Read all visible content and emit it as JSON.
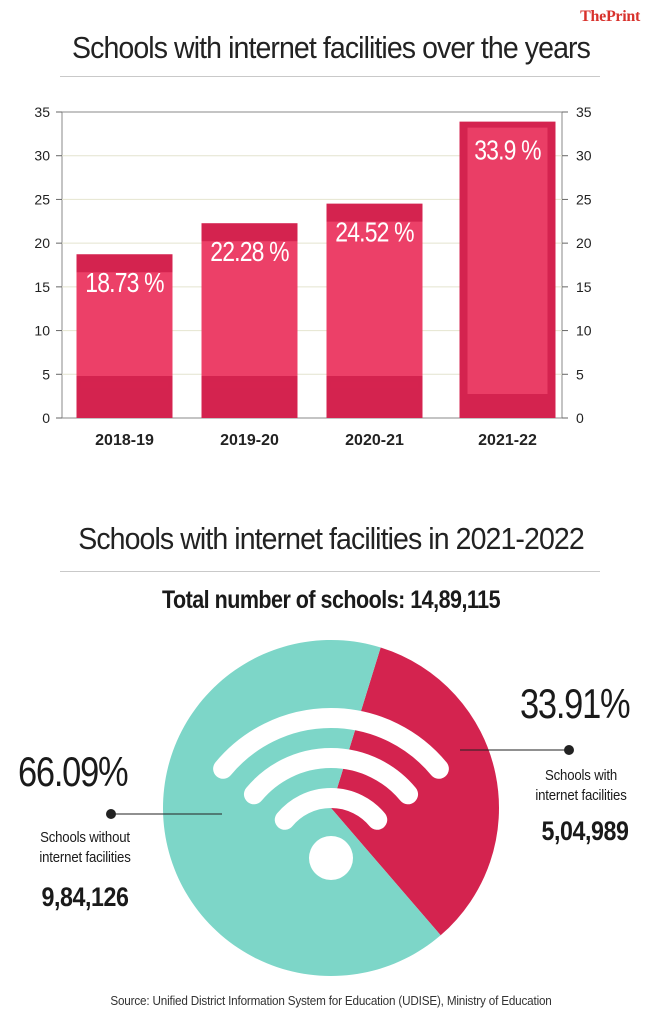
{
  "brand": {
    "part1": "The",
    "part2": "Print"
  },
  "source": "Source: Unified District Information System for Education (UDISE), Ministry of Education",
  "chart_data": [
    {
      "type": "bar",
      "title": "Schools with internet facilities over the years",
      "categories": [
        "2018-19",
        "2019-20",
        "2020-21",
        "2021-22"
      ],
      "values": [
        18.73,
        22.28,
        24.52,
        33.9
      ],
      "data_labels": [
        "18.73 %",
        "22.28 %",
        "24.52 %",
        "33.9 %"
      ],
      "ylim": [
        0,
        35
      ],
      "yticks": [
        0,
        5,
        10,
        15,
        20,
        25,
        30,
        35
      ],
      "grid": true,
      "bar_color": "#d4234f",
      "bar_highlight": "#ff5a7e"
    },
    {
      "type": "pie",
      "title": "Schools with internet facilities in 2021-2022",
      "subtitle": "Total number of schools: 14,89,115",
      "slices": [
        {
          "label": "Schools with internet facilities",
          "percent": 33.91,
          "percent_label": "33.91%",
          "count": "5,04,989",
          "color": "#d4234f"
        },
        {
          "label": "Schools without internet facilities",
          "percent": 66.09,
          "percent_label": "66.09%",
          "count": "9,84,126",
          "color": "#7dd6c8"
        }
      ],
      "center_icon": "wifi-icon"
    }
  ]
}
